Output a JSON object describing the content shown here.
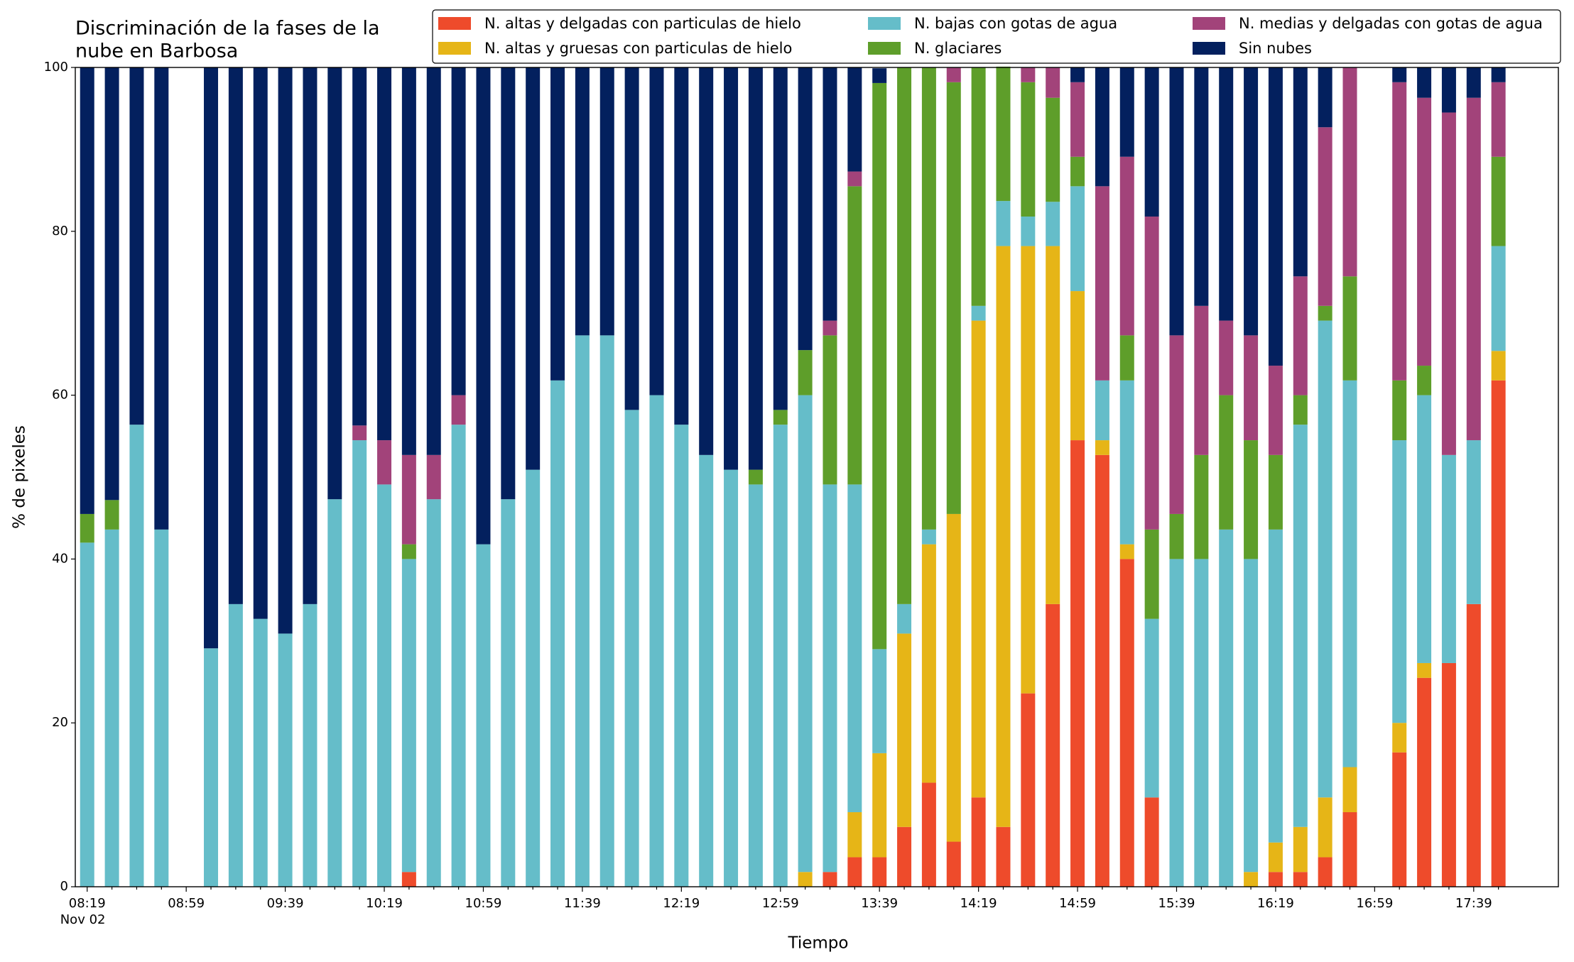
{
  "chart_data": {
    "type": "stacked_bar",
    "title": [
      "Discriminación de la fases de la",
      "nube en Barbosa"
    ],
    "xlabel": "Tiempo",
    "ylabel": "% de pixeles",
    "x_date_label": "Nov 02",
    "categories": [
      "08:19",
      null,
      null,
      null,
      "08:59",
      null,
      null,
      null,
      "09:39",
      null,
      null,
      null,
      "10:19",
      null,
      null,
      null,
      "10:59",
      null,
      null,
      null,
      "11:39",
      null,
      null,
      null,
      "12:19",
      null,
      null,
      null,
      "12:59",
      null,
      null,
      null,
      "13:39",
      null,
      null,
      null,
      "14:19",
      null,
      null,
      null,
      "14:59",
      null,
      null,
      null,
      "15:39",
      null,
      null,
      null,
      "16:19",
      null,
      null,
      null,
      "16:59",
      null,
      null,
      null,
      "17:39",
      null
    ],
    "ylim": [
      0,
      100
    ],
    "yticks": [
      0,
      20,
      40,
      60,
      80,
      100
    ],
    "grid": false,
    "legend": "top",
    "series": [
      {
        "name": "N. altas y delgadas con particulas de hielo",
        "color": "#ee4b2b",
        "values": [
          0,
          0,
          0,
          0,
          null,
          0,
          0,
          0,
          0,
          0,
          0,
          0,
          0,
          1.8,
          0,
          0,
          0,
          0,
          0,
          0,
          0,
          0,
          0,
          0,
          0,
          0,
          0,
          0,
          0,
          0,
          1.8,
          3.6,
          3.6,
          7.3,
          12.7,
          5.5,
          10.9,
          7.3,
          23.6,
          34.5,
          54.5,
          52.7,
          40,
          10.9,
          0,
          0,
          0,
          0,
          1.8,
          1.8,
          3.6,
          9.1,
          null,
          16.4,
          25.5,
          27.3,
          34.5,
          61.8
        ]
      },
      {
        "name": "N. altas y gruesas con particulas de hielo",
        "color": "#e6b517",
        "values": [
          0,
          0,
          0,
          0,
          null,
          0,
          0,
          0,
          0,
          0,
          0,
          0,
          0,
          0,
          0,
          0,
          0,
          0,
          0,
          0,
          0,
          0,
          0,
          0,
          0,
          0,
          0,
          0,
          0,
          1.8,
          0,
          5.5,
          12.7,
          23.6,
          29.1,
          40,
          58.2,
          70.9,
          54.6,
          43.7,
          18.2,
          1.8,
          1.8,
          0,
          0,
          0,
          0,
          1.8,
          3.6,
          5.5,
          7.3,
          5.5,
          null,
          3.6,
          1.8,
          0,
          0,
          3.6
        ]
      },
      {
        "name": "N. bajas con gotas de agua",
        "color": "#65bdc9",
        "values": [
          42,
          43.6,
          56.4,
          43.6,
          null,
          29.1,
          34.5,
          32.7,
          30.9,
          34.5,
          47.3,
          54.5,
          49.1,
          38.2,
          47.3,
          56.4,
          41.8,
          47.3,
          50.9,
          61.8,
          67.3,
          67.3,
          58.2,
          60,
          56.4,
          52.7,
          50.9,
          49.1,
          56.4,
          58.2,
          47.3,
          40,
          12.7,
          3.6,
          1.8,
          0,
          1.8,
          5.5,
          3.6,
          5.4,
          12.8,
          7.3,
          20,
          21.8,
          40,
          40,
          43.6,
          38.2,
          38.2,
          49.1,
          58.2,
          47.2,
          null,
          34.5,
          32.7,
          25.4,
          20,
          12.8
        ]
      },
      {
        "name": "N. glaciares",
        "color": "#5e9e2a",
        "values": [
          3.5,
          3.6,
          0,
          0,
          null,
          0,
          0,
          0,
          0,
          0,
          0,
          0,
          0,
          1.8,
          0,
          0,
          0,
          0,
          0,
          0,
          0,
          0,
          0,
          0,
          0,
          0,
          0,
          1.8,
          1.8,
          5.5,
          18.2,
          36.4,
          69.1,
          65.5,
          56.4,
          52.7,
          29.1,
          16.4,
          16.4,
          12.7,
          3.6,
          0,
          5.5,
          10.9,
          5.5,
          12.7,
          16.4,
          14.5,
          9.1,
          3.6,
          1.8,
          12.7,
          null,
          7.3,
          3.6,
          0,
          0,
          10.9
        ]
      },
      {
        "name": "N. medias y delgadas con gotas de agua",
        "color": "#a2437a",
        "values": [
          0,
          0,
          0,
          0,
          null,
          0,
          0,
          0,
          0,
          0,
          0,
          1.8,
          5.4,
          10.9,
          5.4,
          3.6,
          0,
          0,
          0,
          0,
          0,
          0,
          0,
          0,
          0,
          0,
          0,
          0,
          0,
          0,
          1.8,
          1.8,
          0,
          0,
          0,
          1.8,
          0,
          0,
          1.8,
          3.7,
          9.1,
          23.7,
          21.8,
          38.2,
          21.8,
          18.2,
          9.1,
          12.8,
          10.9,
          14.5,
          21.8,
          25.5,
          null,
          36.4,
          32.7,
          41.8,
          41.8,
          9.1
        ]
      },
      {
        "name": "Sin nubes",
        "color": "#03205e",
        "values": [
          54.5,
          52.8,
          43.6,
          56.4,
          null,
          70.9,
          65.5,
          67.3,
          69.1,
          65.5,
          52.7,
          43.7,
          45.5,
          47.3,
          47.3,
          40,
          58.2,
          52.7,
          49.1,
          38.2,
          32.7,
          32.7,
          41.8,
          40,
          43.6,
          47.3,
          49.1,
          49.1,
          41.8,
          34.5,
          30.9,
          12.7,
          1.8,
          0,
          0,
          0,
          0,
          0,
          0,
          0,
          1.8,
          14.5,
          10.9,
          18.2,
          32.7,
          29.1,
          30.9,
          32.7,
          36.4,
          25.5,
          7.3,
          0,
          null,
          1.8,
          3.7,
          5.5,
          3.7,
          1.8
        ]
      }
    ]
  }
}
